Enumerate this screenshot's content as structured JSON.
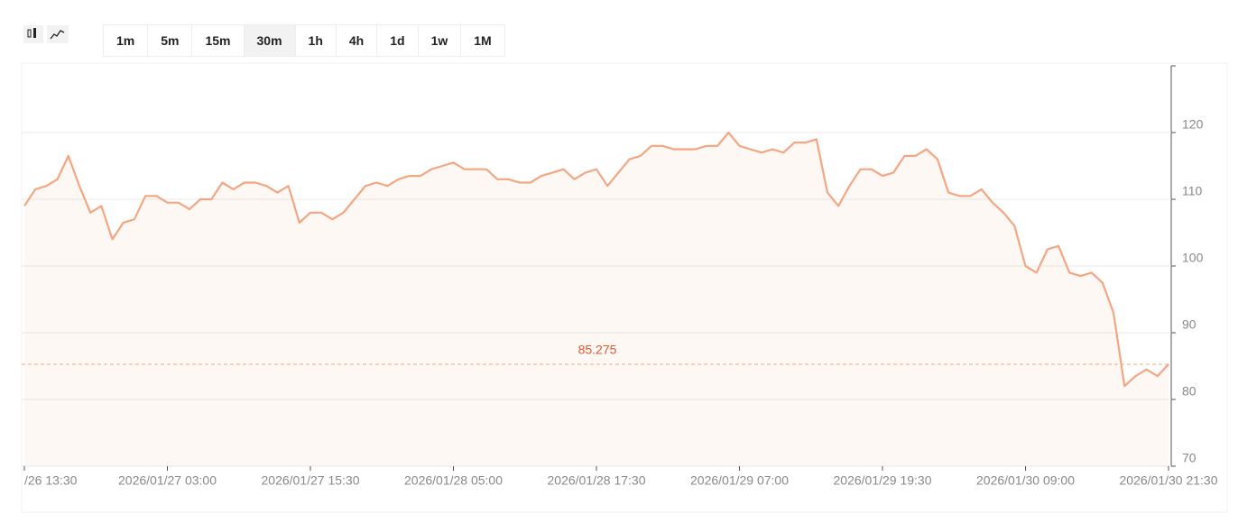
{
  "toolbar": {
    "intervals": [
      "1m",
      "5m",
      "15m",
      "30m",
      "1h",
      "4h",
      "1d",
      "1w",
      "1M"
    ],
    "selected_interval": 3
  },
  "chart_data": {
    "type": "line",
    "color": "#f4a582",
    "grid": true,
    "categories": [
      "/26 13:30",
      null,
      null,
      null,
      null,
      null,
      null,
      null,
      null,
      null,
      null,
      null,
      null,
      "2026/01/27 03:00",
      null,
      null,
      null,
      null,
      null,
      null,
      null,
      null,
      null,
      null,
      null,
      null,
      "2026/01/27 15:30",
      null,
      null,
      null,
      null,
      null,
      null,
      null,
      null,
      null,
      null,
      null,
      null,
      "2026/01/28 05:00",
      null,
      null,
      null,
      null,
      null,
      null,
      null,
      null,
      null,
      null,
      null,
      null,
      "2026/01/28 17:30",
      null,
      null,
      null,
      null,
      null,
      null,
      null,
      null,
      null,
      null,
      null,
      null,
      "2026/01/29 07:00",
      null,
      null,
      null,
      null,
      null,
      null,
      null,
      null,
      null,
      null,
      null,
      null,
      "2026/01/29 19:30",
      null,
      null,
      null,
      null,
      null,
      null,
      null,
      null,
      null,
      null,
      null,
      null,
      "2026/01/30 09:00",
      null,
      null,
      null,
      null,
      null,
      null,
      null,
      null,
      null,
      null,
      null,
      null,
      "2026/01/30 21:30"
    ],
    "values": [
      109,
      111.5,
      112,
      113,
      116.5,
      112,
      108,
      109,
      104,
      106.5,
      107,
      110.5,
      110.5,
      109.5,
      109.5,
      108.5,
      110,
      110,
      112.5,
      111.5,
      112.5,
      112.5,
      112,
      111,
      112,
      106.5,
      108,
      108,
      107,
      108,
      110,
      112,
      112.5,
      112,
      113,
      113.5,
      113.5,
      114.5,
      115,
      115.5,
      114.5,
      114.5,
      114.5,
      113,
      113,
      112.5,
      112.5,
      113.5,
      114,
      114.5,
      113,
      114,
      114.5,
      112,
      114,
      116,
      116.5,
      118,
      118,
      117.5,
      117.5,
      117.5,
      118,
      118,
      120,
      118,
      117.5,
      117,
      117.5,
      117,
      118.5,
      118.5,
      119,
      111,
      109,
      112,
      114.5,
      114.5,
      113.5,
      114,
      116.5,
      116.5,
      117.5,
      116,
      111,
      110.5,
      110.5,
      111.5,
      109.5,
      108,
      106,
      100,
      99,
      102.5,
      103,
      99,
      98.5,
      99,
      97.5,
      93,
      82,
      83.5,
      84.5,
      83.5,
      85.275
    ],
    "last_price": 85.275,
    "ylim": [
      70,
      130
    ],
    "yticks": [
      70,
      80,
      90,
      100,
      110,
      120
    ]
  }
}
